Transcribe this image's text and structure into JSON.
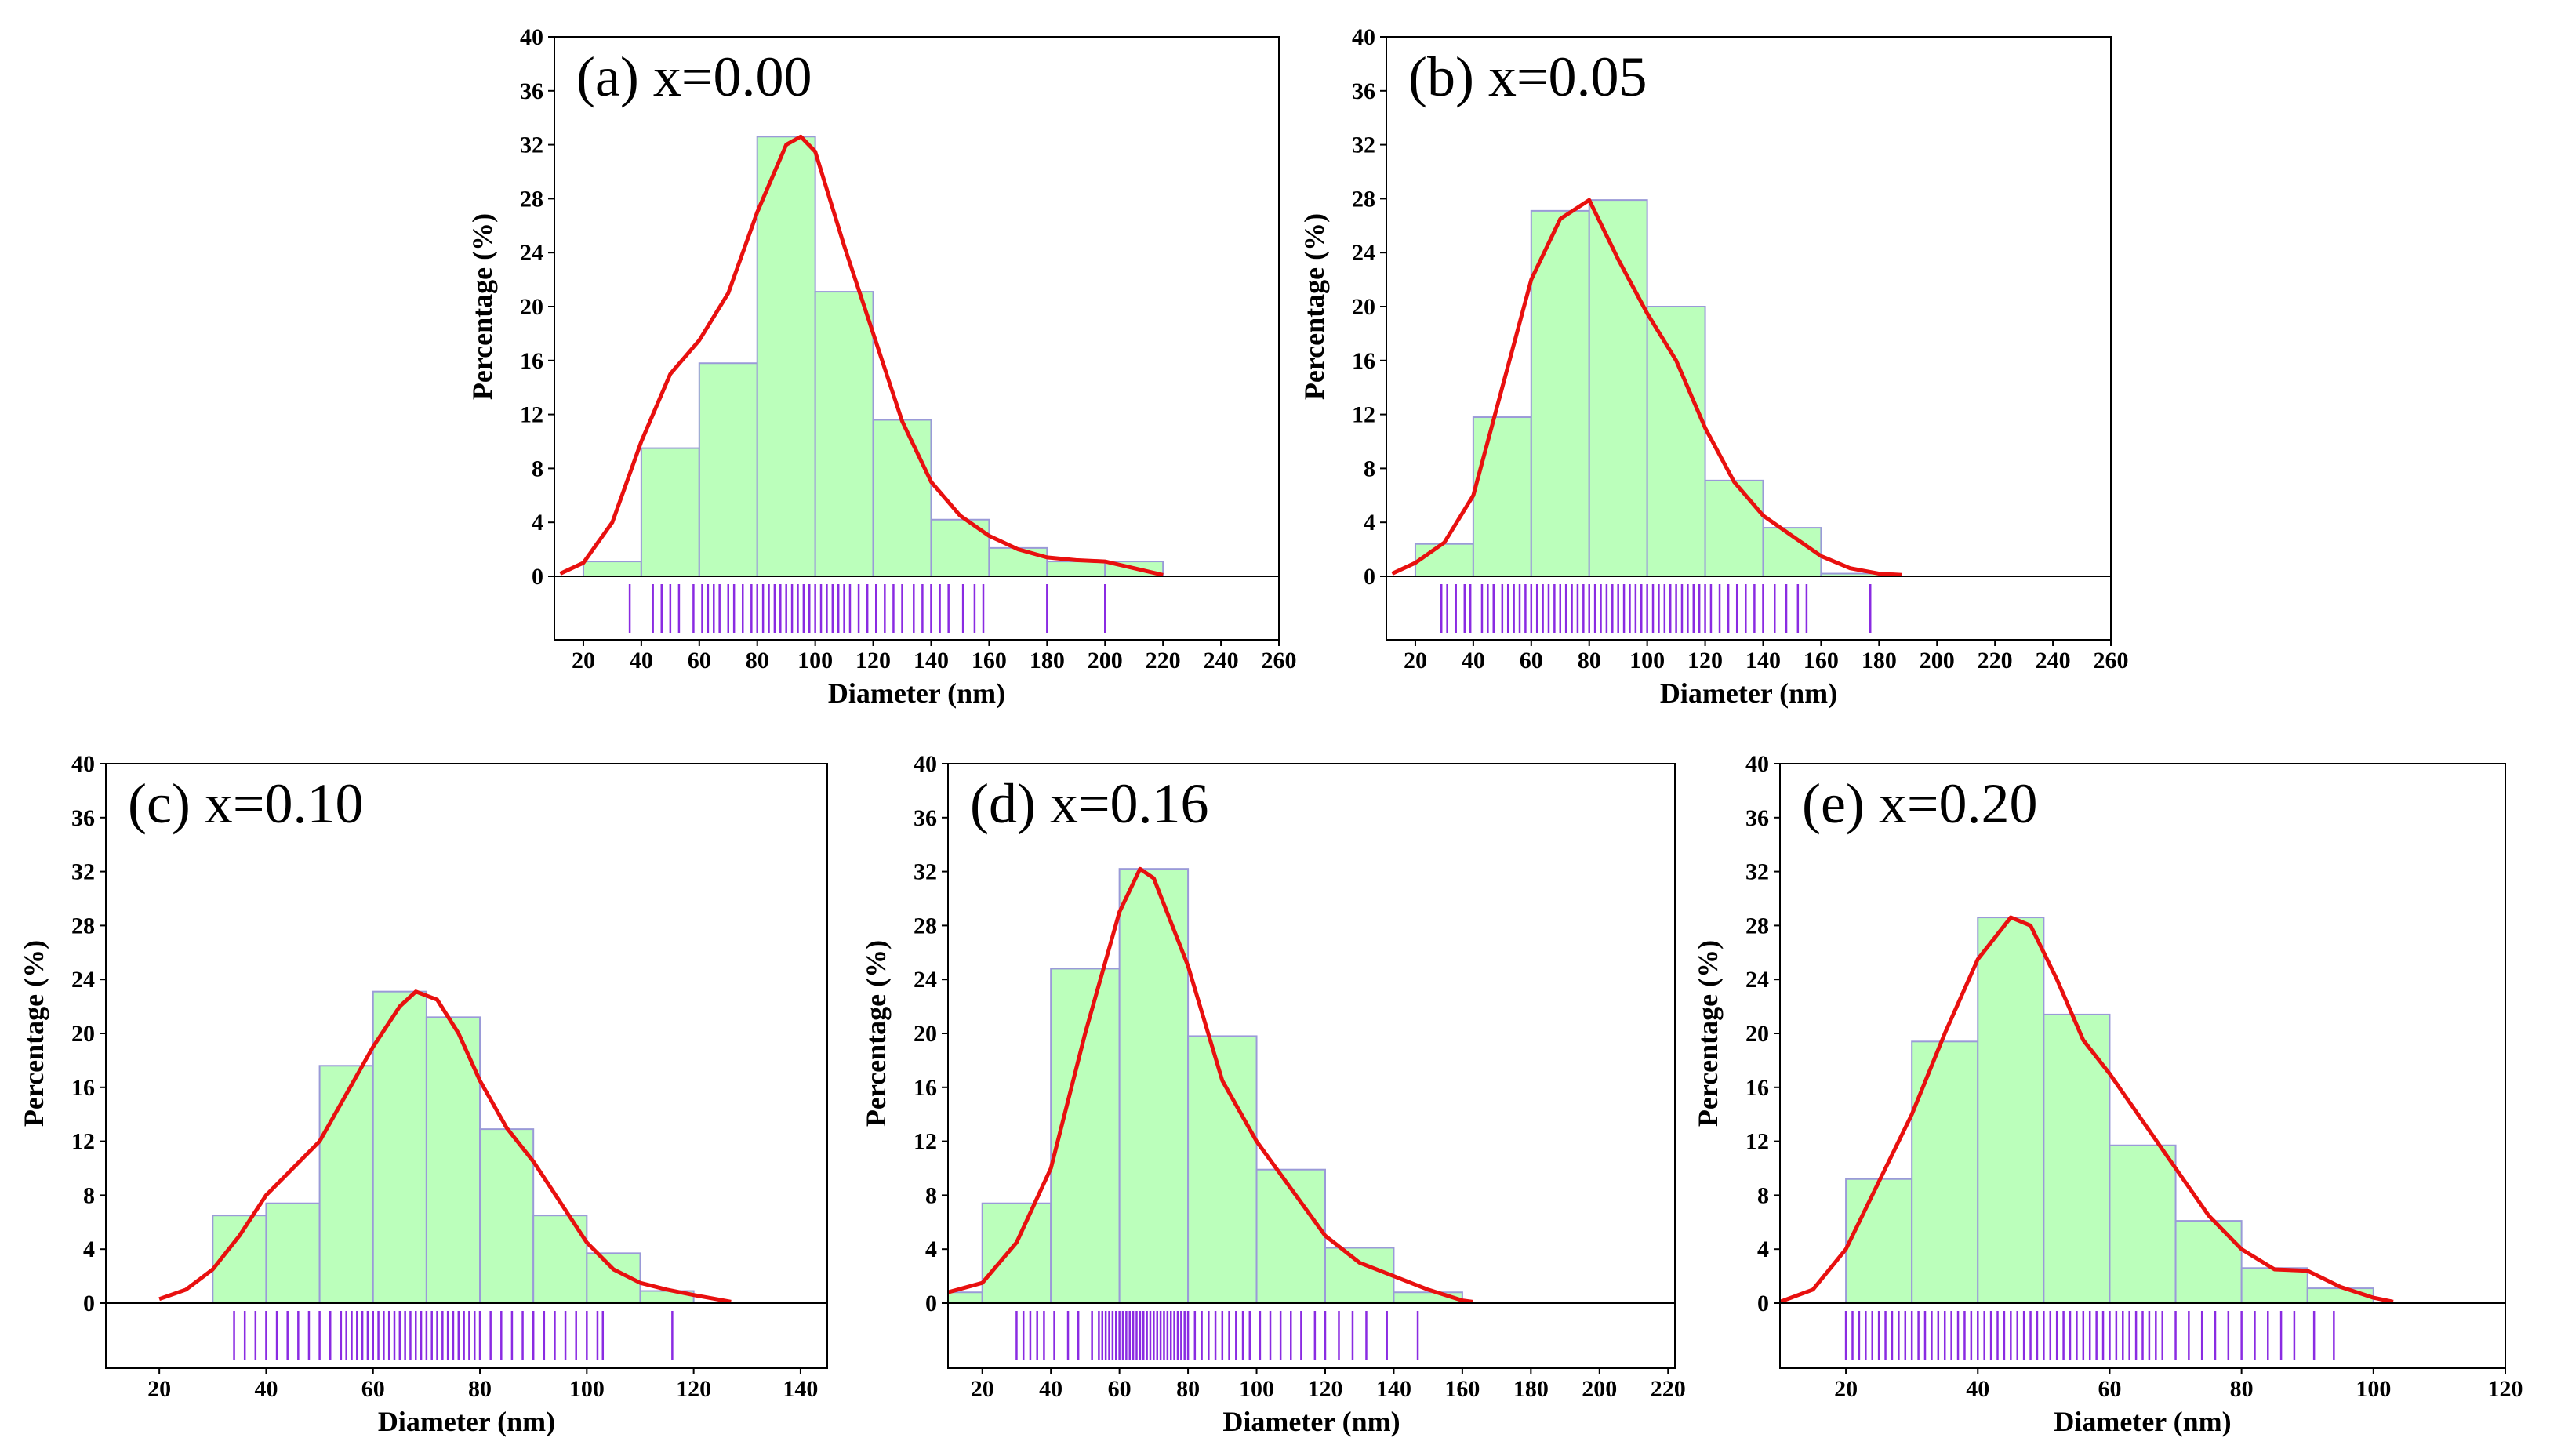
{
  "chart_data": [
    {
      "type": "bar",
      "title": "(a) x=0.00",
      "xlabel": "Diameter (nm)",
      "ylabel": "Percentage (%)",
      "xlim": [
        10,
        260
      ],
      "ylim": [
        0,
        40
      ],
      "xticks": [
        "20",
        "40",
        "60",
        "80",
        "100",
        "120",
        "140",
        "160",
        "180",
        "200",
        "220",
        "240",
        "260"
      ],
      "yticks": [
        "0",
        "4",
        "8",
        "12",
        "16",
        "20",
        "24",
        "28",
        "32",
        "36",
        "40"
      ],
      "bin_edges": [
        20,
        40,
        60,
        80,
        100,
        120,
        140,
        160,
        180,
        200,
        220
      ],
      "values": [
        1.1,
        9.5,
        15.8,
        32.6,
        21.1,
        11.6,
        4.2,
        2.1,
        1.1,
        1.1
      ],
      "kde_curve": [
        [
          12,
          0.2
        ],
        [
          20,
          1.0
        ],
        [
          30,
          4.0
        ],
        [
          40,
          10.0
        ],
        [
          50,
          15.0
        ],
        [
          60,
          17.5
        ],
        [
          70,
          21.0
        ],
        [
          80,
          27.0
        ],
        [
          90,
          32.0
        ],
        [
          95,
          32.6
        ],
        [
          100,
          31.5
        ],
        [
          110,
          24.5
        ],
        [
          120,
          18.0
        ],
        [
          130,
          11.5
        ],
        [
          140,
          7.0
        ],
        [
          150,
          4.5
        ],
        [
          160,
          3.0
        ],
        [
          170,
          2.0
        ],
        [
          180,
          1.4
        ],
        [
          190,
          1.2
        ],
        [
          200,
          1.1
        ],
        [
          210,
          0.6
        ],
        [
          220,
          0.1
        ]
      ],
      "rug": [
        36,
        44,
        47,
        50,
        53,
        58,
        61,
        63,
        65,
        67,
        70,
        72,
        75,
        78,
        80,
        82,
        84,
        86,
        88,
        90,
        92,
        94,
        96,
        98,
        100,
        102,
        104,
        106,
        108,
        110,
        112,
        115,
        118,
        121,
        124,
        127,
        130,
        134,
        137,
        140,
        143,
        146,
        151,
        155,
        158,
        180,
        200
      ]
    },
    {
      "type": "bar",
      "title": "(b) x=0.05",
      "xlabel": "Diameter (nm)",
      "ylabel": "Percentage (%)",
      "xlim": [
        10,
        260
      ],
      "ylim": [
        0,
        40
      ],
      "xticks": [
        "20",
        "40",
        "60",
        "80",
        "100",
        "120",
        "140",
        "160",
        "180",
        "200",
        "220",
        "240",
        "260"
      ],
      "yticks": [
        "0",
        "4",
        "8",
        "12",
        "16",
        "20",
        "24",
        "28",
        "32",
        "36",
        "40"
      ],
      "bin_edges": [
        20,
        40,
        60,
        80,
        100,
        120,
        140,
        160,
        180
      ],
      "values": [
        2.4,
        11.8,
        27.1,
        27.9,
        20.0,
        7.1,
        3.6,
        0.2
      ],
      "kde_curve": [
        [
          12,
          0.2
        ],
        [
          20,
          1.0
        ],
        [
          30,
          2.5
        ],
        [
          40,
          6.0
        ],
        [
          50,
          14.0
        ],
        [
          60,
          22.0
        ],
        [
          70,
          26.5
        ],
        [
          80,
          27.9
        ],
        [
          90,
          23.5
        ],
        [
          100,
          19.5
        ],
        [
          110,
          16.0
        ],
        [
          120,
          11.0
        ],
        [
          130,
          7.0
        ],
        [
          140,
          4.5
        ],
        [
          150,
          3.0
        ],
        [
          160,
          1.5
        ],
        [
          170,
          0.6
        ],
        [
          180,
          0.2
        ],
        [
          188,
          0.1
        ]
      ],
      "rug": [
        29,
        31,
        34,
        37,
        39,
        43,
        45,
        47,
        50,
        52,
        54,
        56,
        58,
        60,
        62,
        64,
        66,
        68,
        70,
        72,
        74,
        76,
        78,
        80,
        82,
        84,
        86,
        88,
        90,
        92,
        94,
        96,
        98,
        100,
        102,
        104,
        106,
        108,
        110,
        112,
        114,
        116,
        118,
        120,
        122,
        125,
        128,
        131,
        134,
        137,
        140,
        144,
        148,
        152,
        155,
        177
      ]
    },
    {
      "type": "bar",
      "title": "(c) x=0.10",
      "xlabel": "Diameter (nm)",
      "ylabel": "Percentage (%)",
      "xlim": [
        10,
        145
      ],
      "ylim": [
        0,
        40
      ],
      "xticks": [
        "20",
        "40",
        "60",
        "80",
        "100",
        "120",
        "140"
      ],
      "yticks": [
        "0",
        "4",
        "8",
        "12",
        "16",
        "20",
        "24",
        "28",
        "32",
        "36",
        "40"
      ],
      "bin_edges": [
        30,
        40,
        50,
        60,
        70,
        80,
        90,
        100,
        110,
        120
      ],
      "values": [
        6.5,
        7.4,
        17.6,
        23.1,
        21.2,
        12.9,
        6.5,
        3.7,
        0.9
      ],
      "kde_curve": [
        [
          20,
          0.3
        ],
        [
          25,
          1.0
        ],
        [
          30,
          2.5
        ],
        [
          35,
          5.0
        ],
        [
          40,
          8.0
        ],
        [
          45,
          10.0
        ],
        [
          50,
          12.0
        ],
        [
          55,
          15.5
        ],
        [
          60,
          19.0
        ],
        [
          65,
          22.0
        ],
        [
          68,
          23.1
        ],
        [
          72,
          22.5
        ],
        [
          76,
          20.0
        ],
        [
          80,
          16.5
        ],
        [
          85,
          13.0
        ],
        [
          90,
          10.5
        ],
        [
          95,
          7.5
        ],
        [
          100,
          4.5
        ],
        [
          105,
          2.5
        ],
        [
          110,
          1.5
        ],
        [
          115,
          1.0
        ],
        [
          120,
          0.6
        ],
        [
          127,
          0.1
        ]
      ],
      "rug": [
        34,
        36,
        38,
        40,
        42,
        44,
        46,
        48,
        50,
        52,
        54,
        55,
        56,
        57,
        58,
        59,
        60,
        61,
        62,
        63,
        64,
        65,
        66,
        67,
        68,
        69,
        70,
        71,
        72,
        73,
        74,
        75,
        76,
        77,
        78,
        79,
        80,
        82,
        84,
        86,
        88,
        90,
        92,
        94,
        96,
        98,
        100,
        102,
        103,
        116
      ]
    },
    {
      "type": "bar",
      "title": "(d) x=0.16",
      "xlabel": "Diameter (nm)",
      "ylabel": "Percentage (%)",
      "xlim": [
        10,
        222
      ],
      "ylim": [
        0,
        40
      ],
      "xticks": [
        "20",
        "40",
        "60",
        "80",
        "100",
        "120",
        "140",
        "160",
        "180",
        "200",
        "220"
      ],
      "yticks": [
        "0",
        "4",
        "8",
        "12",
        "16",
        "20",
        "24",
        "28",
        "32",
        "36",
        "40"
      ],
      "bin_edges": [
        10,
        20,
        40,
        60,
        80,
        100,
        120,
        140,
        160
      ],
      "values": [
        0.8,
        7.4,
        24.8,
        32.2,
        19.8,
        9.9,
        4.1,
        0.8
      ],
      "kde_curve": [
        [
          10,
          0.8
        ],
        [
          20,
          1.5
        ],
        [
          30,
          4.5
        ],
        [
          40,
          10.0
        ],
        [
          50,
          20.0
        ],
        [
          60,
          29.0
        ],
        [
          66,
          32.2
        ],
        [
          70,
          31.5
        ],
        [
          80,
          25.0
        ],
        [
          90,
          16.5
        ],
        [
          100,
          12.0
        ],
        [
          110,
          8.5
        ],
        [
          120,
          5.0
        ],
        [
          130,
          3.0
        ],
        [
          140,
          2.0
        ],
        [
          150,
          1.0
        ],
        [
          160,
          0.2
        ],
        [
          163,
          0.1
        ]
      ],
      "rug": [
        30,
        32,
        34,
        36,
        38,
        41,
        45,
        48,
        52,
        54,
        55,
        56,
        57,
        58,
        59,
        60,
        61,
        62,
        63,
        64,
        65,
        66,
        67,
        68,
        69,
        70,
        71,
        72,
        73,
        74,
        75,
        76,
        77,
        78,
        79,
        80,
        82,
        84,
        86,
        88,
        90,
        92,
        94,
        96,
        98,
        101,
        104,
        107,
        110,
        113,
        117,
        120,
        124,
        128,
        132,
        138,
        147
      ]
    },
    {
      "type": "bar",
      "title": "(e) x=0.20",
      "xlabel": "Diameter (nm)",
      "ylabel": "Percentage (%)",
      "xlim": [
        10,
        120
      ],
      "ylim": [
        0,
        40
      ],
      "xticks": [
        "20",
        "40",
        "60",
        "80",
        "100",
        "120"
      ],
      "yticks": [
        "0",
        "4",
        "8",
        "12",
        "16",
        "20",
        "24",
        "28",
        "32",
        "36",
        "40"
      ],
      "bin_edges": [
        20,
        30,
        40,
        50,
        60,
        70,
        80,
        90,
        100
      ],
      "values": [
        9.2,
        19.4,
        28.6,
        21.4,
        11.7,
        6.1,
        2.6,
        1.1
      ],
      "kde_curve": [
        [
          10,
          0.1
        ],
        [
          15,
          1.0
        ],
        [
          20,
          4.0
        ],
        [
          25,
          9.0
        ],
        [
          30,
          14.0
        ],
        [
          35,
          20.0
        ],
        [
          40,
          25.5
        ],
        [
          45,
          28.6
        ],
        [
          48,
          28.0
        ],
        [
          52,
          24.0
        ],
        [
          56,
          19.5
        ],
        [
          60,
          17.0
        ],
        [
          65,
          13.5
        ],
        [
          70,
          10.0
        ],
        [
          75,
          6.5
        ],
        [
          80,
          4.0
        ],
        [
          85,
          2.5
        ],
        [
          90,
          2.4
        ],
        [
          95,
          1.2
        ],
        [
          100,
          0.4
        ],
        [
          103,
          0.1
        ]
      ],
      "rug": [
        20,
        21,
        22,
        23,
        24,
        25,
        26,
        27,
        28,
        29,
        30,
        31,
        32,
        33,
        34,
        35,
        36,
        37,
        38,
        39,
        40,
        41,
        42,
        43,
        44,
        45,
        46,
        47,
        48,
        49,
        50,
        51,
        52,
        53,
        54,
        55,
        56,
        57,
        58,
        59,
        60,
        61,
        62,
        63,
        64,
        65,
        66,
        67,
        68,
        70,
        72,
        74,
        76,
        78,
        80,
        82,
        84,
        86,
        88,
        91,
        94
      ]
    }
  ]
}
